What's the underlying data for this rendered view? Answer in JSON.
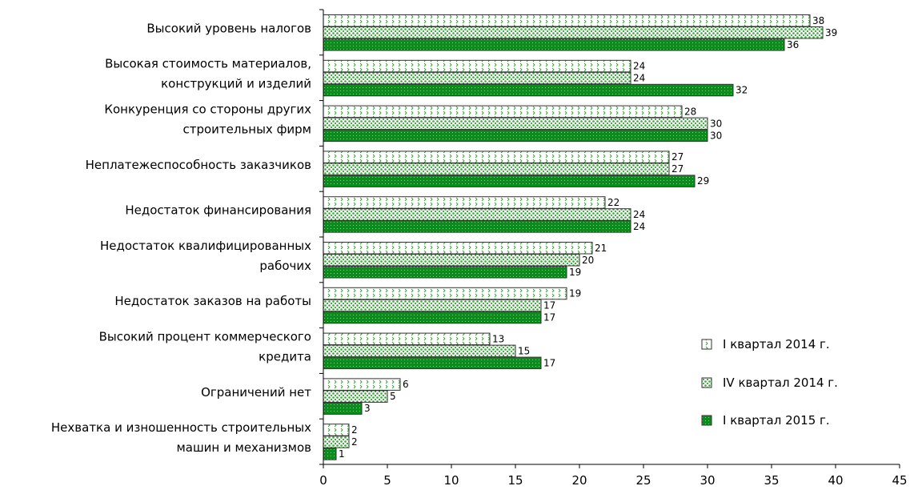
{
  "chart_data": {
    "type": "bar",
    "orientation": "horizontal",
    "categories": [
      [
        "Высокий уровень налогов"
      ],
      [
        "Высокая стоимость материалов,",
        "конструкций и изделий"
      ],
      [
        "Конкуренция со стороны других",
        "строительных фирм"
      ],
      [
        "Неплатежеспособность заказчиков"
      ],
      [
        "Недостаток финансирования"
      ],
      [
        "Недостаток квалифицированных",
        "рабочих"
      ],
      [
        "Недостаток заказов на работы"
      ],
      [
        "Высокий процент коммерческого",
        "кредита"
      ],
      [
        "Ограничений нет"
      ],
      [
        "Нехватка и изношенность строительных",
        "машин и механизмов"
      ]
    ],
    "series": [
      {
        "name": "I квартал 2014 г.",
        "values": [
          38,
          24,
          28,
          27,
          22,
          21,
          19,
          13,
          6,
          2
        ]
      },
      {
        "name": "IV квартал 2014 г.",
        "values": [
          39,
          24,
          30,
          27,
          24,
          20,
          17,
          15,
          5,
          2
        ]
      },
      {
        "name": "I квартал 2015 г.",
        "values": [
          36,
          32,
          30,
          29,
          24,
          19,
          17,
          17,
          3,
          1
        ]
      }
    ],
    "xlim": [
      0,
      45
    ],
    "xticks": [
      0,
      5,
      10,
      15,
      20,
      25,
      30,
      35,
      40,
      45
    ],
    "grid": false,
    "legend_position": "right",
    "colors": {
      "series1_fill": "#ffffff",
      "series1_mark": "#2f9a2f",
      "series2_fill": "#ffffff",
      "series2_mark": "#35a835",
      "series3_fill": "#0f8a1e",
      "series3_mark": "#7fd27f",
      "outline": "#333333"
    }
  }
}
